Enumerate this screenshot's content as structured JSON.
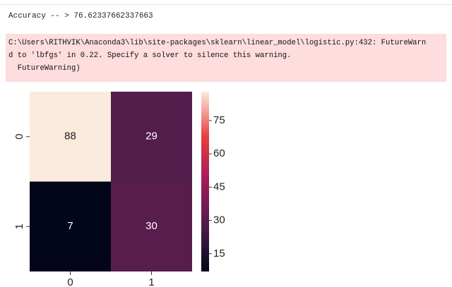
{
  "output": {
    "accuracy_line": "Accuracy -- > 76.62337662337663",
    "warning_lines": [
      "C:\\Users\\RITHVIK\\Anaconda3\\lib\\site-packages\\sklearn\\linear_model\\logistic.py:432: FutureWarn",
      "d to 'lbfgs' in 0.22. Specify a solver to silence this warning.",
      "  FutureWarning)"
    ]
  },
  "chart_data": {
    "type": "heatmap",
    "x_categories": [
      "0",
      "1"
    ],
    "y_categories": [
      "0",
      "1"
    ],
    "values": [
      [
        88,
        29
      ],
      [
        7,
        30
      ]
    ],
    "clim": [
      7,
      88
    ],
    "cticks": [
      15,
      30,
      45,
      60,
      75
    ],
    "colormap": [
      "#03051a",
      "#4c1d4b",
      "#a11a5b",
      "#e83f3f",
      "#faebdd"
    ]
  }
}
